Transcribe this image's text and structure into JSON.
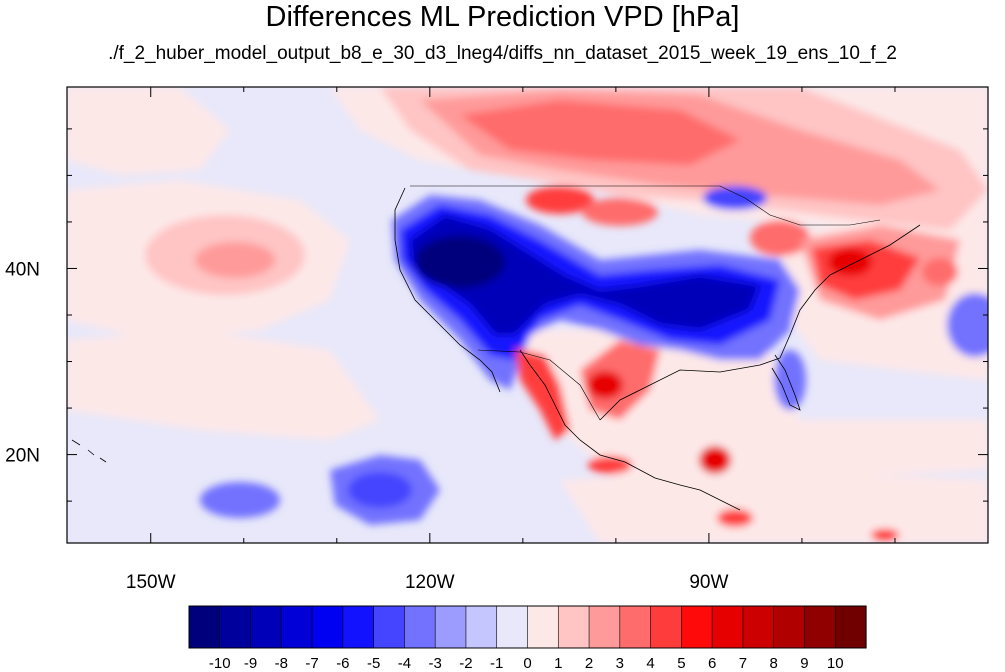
{
  "title": "Differences ML Prediction VPD [hPa]",
  "subtitle": "./f_2_huber_model_output_b8_e_30_d3_lneg4/diffs_nn_dataset_2015_week_19_ens_10_f_2",
  "lon_labels": [
    {
      "lon": -150,
      "text": "150W"
    },
    {
      "lon": -120,
      "text": "120W"
    },
    {
      "lon": -90,
      "text": "90W"
    }
  ],
  "lat_labels": [
    {
      "lat": 40,
      "text": "40N"
    },
    {
      "lat": 20,
      "text": "20N"
    }
  ],
  "extent": {
    "lon_min": -159,
    "lon_max": -60,
    "lat_min": 10.5,
    "lat_max": 59.5
  },
  "colorbar": {
    "labels": [
      "-10",
      "-9",
      "-8",
      "-7",
      "-6",
      "-5",
      "-4",
      "-3",
      "-2",
      "-1",
      "0",
      "1",
      "2",
      "3",
      "4",
      "5",
      "6",
      "7",
      "8",
      "9",
      "10"
    ],
    "colors": [
      "#00007c",
      "#00009d",
      "#0000b9",
      "#0000d7",
      "#0000f2",
      "#1212ff",
      "#4545ff",
      "#7272ff",
      "#9c9cff",
      "#c6c6ff",
      "#e8e8fa",
      "#fde8e8",
      "#ffc4c4",
      "#ff9a9a",
      "#ff6c6c",
      "#ff3c3c",
      "#ff0a0a",
      "#e70000",
      "#cd0000",
      "#b00000",
      "#900000",
      "#700000"
    ]
  }
}
